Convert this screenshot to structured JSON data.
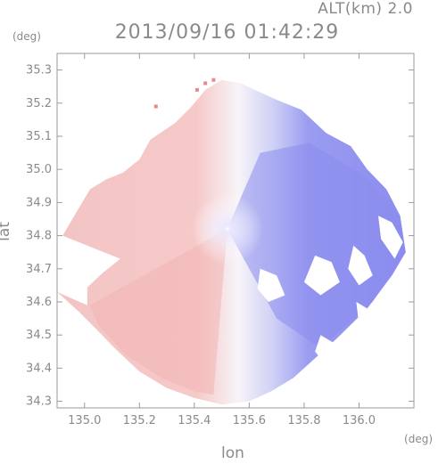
{
  "header": {
    "altitude": "ALT(km) 2.0",
    "timestamp": "2013/09/16 01:42:29"
  },
  "chart_data": {
    "type": "heatmap",
    "title": "2013/09/16 01:42:29",
    "subtitle": "ALT(km) 2.0",
    "xlabel": "lon",
    "ylabel": "lat",
    "x_unit": "(deg)",
    "y_unit": "(deg)",
    "xlim": [
      134.9,
      136.2
    ],
    "ylim": [
      34.28,
      35.35
    ],
    "x_ticks": [
      135.0,
      135.2,
      135.4,
      135.6,
      135.8,
      136.0
    ],
    "x_tick_labels": [
      "135.0",
      "135.2",
      "135.4",
      "135.6",
      "135.8",
      "136.0"
    ],
    "y_ticks": [
      34.3,
      34.4,
      34.5,
      34.6,
      34.7,
      34.8,
      34.9,
      35.0,
      35.1,
      35.2,
      35.3
    ],
    "y_tick_labels": [
      "34.3",
      "34.4",
      "34.5",
      "34.6",
      "34.7",
      "34.8",
      "34.9",
      "35.0",
      "35.1",
      "35.2",
      "35.3"
    ],
    "radar_center": {
      "lon": 135.52,
      "lat": 34.82
    },
    "colors": {
      "toward": "#e88a8a",
      "away": "#7a78e8",
      "neutral": "#f4f2f8"
    },
    "grid": true,
    "legend": "none"
  }
}
